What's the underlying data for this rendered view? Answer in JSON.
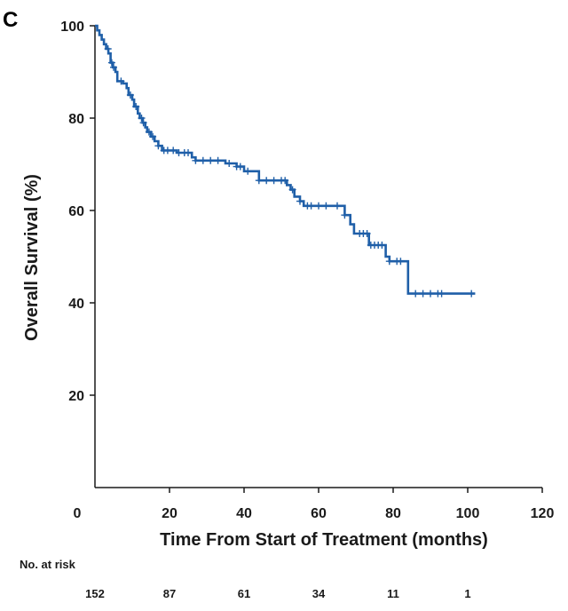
{
  "panel_label": "C",
  "chart_data": {
    "type": "line",
    "subtype": "kaplan-meier",
    "title": "",
    "xlabel": "Time From Start of Treatment (months)",
    "ylabel": "Overall Survival (%)",
    "xlim": [
      0,
      120
    ],
    "ylim": [
      0,
      100
    ],
    "xticks": [
      0,
      20,
      40,
      60,
      80,
      100,
      120
    ],
    "yticks": [
      20,
      40,
      60,
      80,
      100
    ],
    "grid": false,
    "line_color": "#1f5fa8",
    "steps": [
      [
        0,
        100
      ],
      [
        0.6,
        99
      ],
      [
        1.2,
        98
      ],
      [
        1.8,
        97
      ],
      [
        2.4,
        96
      ],
      [
        3,
        95
      ],
      [
        3.6,
        94
      ],
      [
        4.2,
        92
      ],
      [
        4.8,
        91
      ],
      [
        5.5,
        90
      ],
      [
        6,
        88
      ],
      [
        7.5,
        87.5
      ],
      [
        8.5,
        86.5
      ],
      [
        9,
        85
      ],
      [
        10,
        84
      ],
      [
        10.5,
        82.5
      ],
      [
        11.5,
        81
      ],
      [
        12,
        80
      ],
      [
        12.8,
        79
      ],
      [
        13.5,
        78
      ],
      [
        14,
        77
      ],
      [
        15,
        76
      ],
      [
        16,
        75
      ],
      [
        17,
        74
      ],
      [
        18,
        73
      ],
      [
        22,
        72.5
      ],
      [
        26,
        71.5
      ],
      [
        27,
        70.8
      ],
      [
        35,
        70.2
      ],
      [
        38,
        69.5
      ],
      [
        40,
        68.5
      ],
      [
        44,
        66.5
      ],
      [
        51.5,
        65.5
      ],
      [
        52.5,
        64.5
      ],
      [
        53.5,
        63
      ],
      [
        55,
        62
      ],
      [
        56,
        61
      ],
      [
        67,
        59
      ],
      [
        68.5,
        57
      ],
      [
        69.5,
        55
      ],
      [
        73.5,
        52.5
      ],
      [
        78,
        50
      ],
      [
        79,
        49
      ],
      [
        84,
        42
      ],
      [
        102,
        42
      ]
    ],
    "censor_x": [
      3.5,
      4.5,
      5,
      7,
      9.5,
      11,
      12.5,
      13,
      14.5,
      15.5,
      17,
      18.5,
      19.5,
      21,
      22.5,
      24,
      25,
      27,
      29,
      31,
      33,
      36,
      38,
      39,
      41,
      44,
      46,
      48,
      50,
      51,
      53,
      55,
      57,
      58,
      60,
      62,
      65,
      67,
      71,
      72,
      73,
      74,
      75,
      76,
      77,
      79,
      81,
      82,
      86,
      88,
      90,
      92,
      93,
      101
    ],
    "risk_table": {
      "title": "No. at risk",
      "times": [
        0,
        20,
        40,
        60,
        80,
        100
      ],
      "values": [
        "152",
        "87",
        "61",
        "34",
        "11",
        "1"
      ]
    }
  }
}
